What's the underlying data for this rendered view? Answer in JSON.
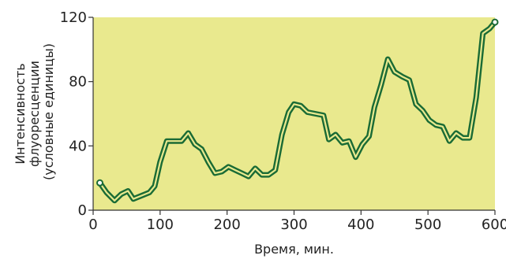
{
  "chart_data": {
    "type": "line",
    "title": "",
    "xlabel": "Время, мин.",
    "ylabel_lines": [
      "Интенсивность",
      "флуоресценции",
      "(условные единицы)"
    ],
    "xlim": [
      0,
      600
    ],
    "ylim": [
      0,
      120
    ],
    "x_ticks": [
      0,
      100,
      200,
      300,
      400,
      500,
      600
    ],
    "y_ticks": [
      0,
      40,
      80,
      120
    ],
    "grid": false,
    "legend": "none",
    "colors": {
      "plot_background": "#e9e98e",
      "line_outer": "#1a6b35",
      "line_inner": "#e9e98e",
      "axis": "#333333"
    },
    "series": [
      {
        "x": [
          10,
          20,
          32,
          42,
          52,
          60,
          72,
          84,
          92,
          100,
          110,
          122,
          132,
          142,
          152,
          162,
          172,
          182,
          192,
          202,
          212,
          222,
          232,
          242,
          252,
          262,
          272,
          282,
          292,
          300,
          310,
          320,
          332,
          344,
          352,
          362,
          372,
          382,
          392,
          402,
          412,
          420,
          430,
          440,
          450,
          462,
          472,
          482,
          492,
          502,
          512,
          522,
          532,
          542,
          552,
          562,
          572,
          582,
          592,
          600
        ],
        "y": [
          17,
          11,
          6,
          10,
          12,
          7,
          9,
          11,
          15,
          30,
          43,
          43,
          43,
          48,
          41,
          38,
          30,
          23,
          24,
          27,
          25,
          23,
          21,
          26,
          22,
          22,
          25,
          47,
          61,
          66,
          65,
          61,
          60,
          59,
          44,
          47,
          42,
          43,
          33,
          41,
          46,
          64,
          78,
          94,
          86,
          83,
          81,
          66,
          62,
          56,
          53,
          52,
          43,
          48,
          45,
          45,
          70,
          110,
          113,
          117
        ]
      }
    ]
  }
}
